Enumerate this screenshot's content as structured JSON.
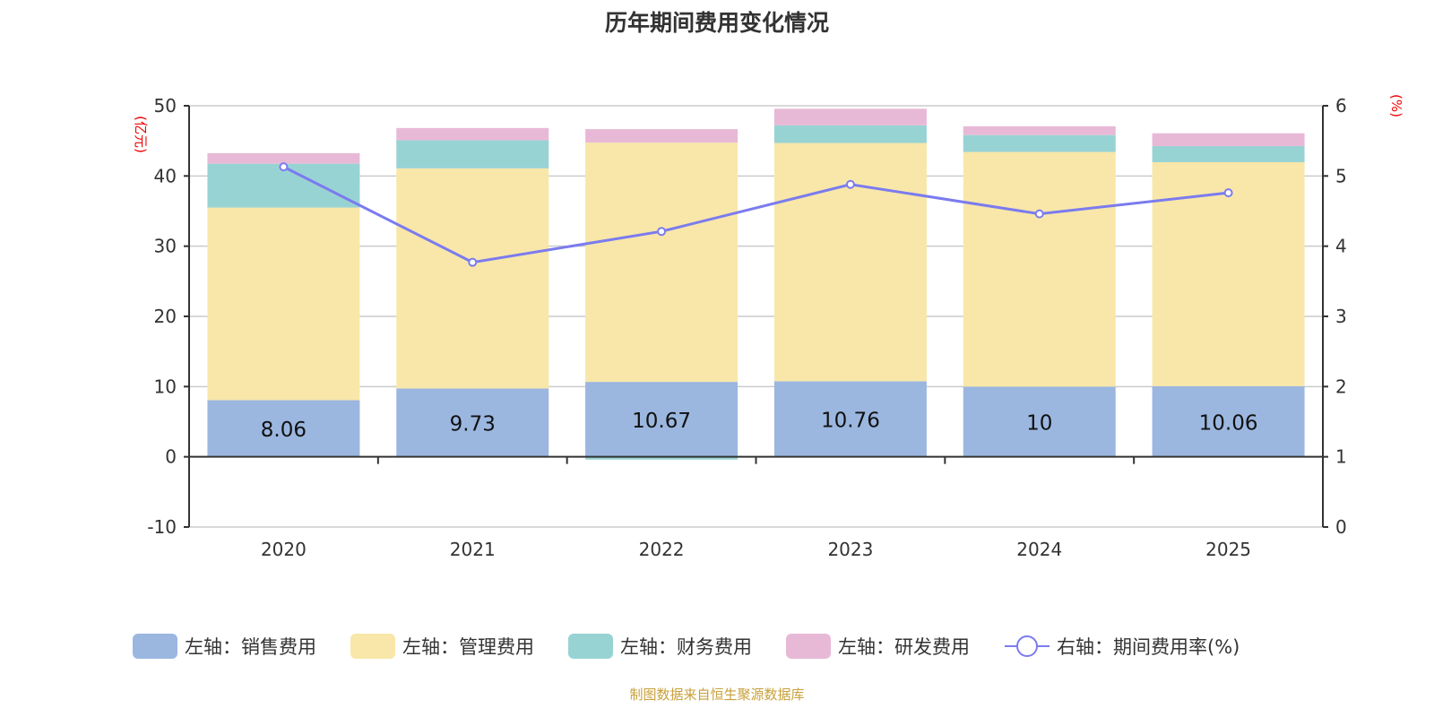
{
  "chart_data": {
    "type": "bar",
    "title": "历年期间费用变化情况",
    "source": "制图数据来自恒生聚源数据库",
    "categories": [
      "2020",
      "2021",
      "2022",
      "2023",
      "2024",
      "2025"
    ],
    "left_axis": {
      "unit": "(亿元)",
      "ylim": [
        -10,
        50
      ],
      "ticks": [
        -10,
        0,
        10,
        20,
        30,
        40,
        50
      ]
    },
    "right_axis": {
      "unit": "(%)",
      "ylim": [
        0,
        6
      ],
      "ticks": [
        0,
        1,
        2,
        3,
        4,
        5,
        6
      ]
    },
    "series": [
      {
        "name": "左轴：销售费用",
        "type": "bar",
        "color": "#9bb7e0",
        "values": [
          8.06,
          9.73,
          10.67,
          10.76,
          10,
          10.06
        ],
        "labels": [
          "8.06",
          "9.73",
          "10.67",
          "10.76",
          "10",
          "10.06"
        ]
      },
      {
        "name": "左轴：管理费用",
        "type": "bar",
        "color": "#f8e7a9",
        "values": [
          27.44,
          31.35,
          34.08,
          33.94,
          33.42,
          31.9
        ]
      },
      {
        "name": "左轴：财务费用",
        "type": "bar",
        "color": "#98d3d4",
        "values": [
          6.25,
          4.0,
          -0.4,
          2.5,
          2.41,
          2.29
        ]
      },
      {
        "name": "左轴：研发费用",
        "type": "bar",
        "color": "#e8b9d7",
        "values": [
          1.5,
          1.75,
          1.92,
          2.38,
          1.25,
          1.83
        ]
      },
      {
        "name": "右轴：期间费用率(%)",
        "type": "line",
        "color": "#7b7bef",
        "values": [
          5.13,
          3.77,
          4.21,
          4.88,
          4.46,
          4.76
        ]
      }
    ],
    "grid": true,
    "legend_position": "bottom"
  }
}
